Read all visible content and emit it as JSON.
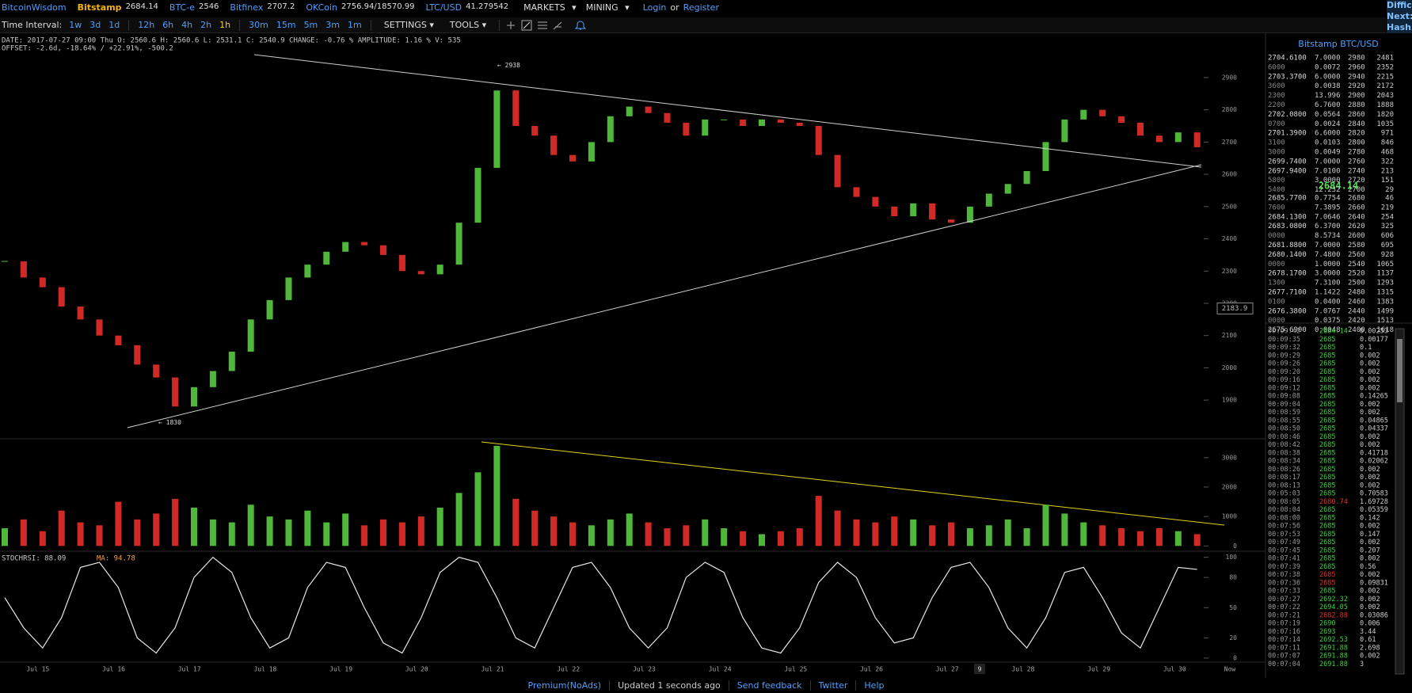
{
  "header": {
    "brand": "BitcoinWisdom",
    "tickers": [
      {
        "name": "Bitstamp",
        "price": "2684.14"
      },
      {
        "name": "BTC-e",
        "price": "2546"
      },
      {
        "name": "Bitfinex",
        "price": "2707.2"
      },
      {
        "name": "OKCoin",
        "price": "2756.94/18570.99"
      },
      {
        "name": "LTC/USD",
        "price": "41.279542"
      }
    ],
    "menus": [
      "MARKETS",
      "MINING"
    ],
    "login": "Login",
    "or": "or",
    "register": "Register"
  },
  "side_info": [
    "Diffic",
    "Next:",
    "Hash"
  ],
  "toolbar": {
    "label": "Time Interval:",
    "intervals": [
      "1w",
      "3d",
      "1d",
      "12h",
      "6h",
      "4h",
      "2h",
      "1h",
      "30m",
      "15m",
      "5m",
      "3m",
      "1m"
    ],
    "active_interval": "1h",
    "settings": "SETTINGS",
    "tools": "TOOLS"
  },
  "chart_data": [
    {
      "type": "candlestick",
      "info": "DATE: 2017-07-27 09:00 Thu   O: 2560.6   H: 2560.6   L: 2531.1   C: 2540.9   CHANGE: -0.76 %   AMPLITUDE: 1.16 %   V: 535",
      "offset": "OFFSET: -2.6d, -18.64% / +22.91%, -500.2",
      "values": [
        2330,
        2280,
        2250,
        2190,
        2150,
        2100,
        2070,
        2010,
        1970,
        1880,
        1940,
        1990,
        2050,
        2150,
        2210,
        2280,
        2320,
        2360,
        2390,
        2380,
        2350,
        2300,
        2290,
        2320,
        2450,
        2620,
        2860,
        2750,
        2720,
        2660,
        2640,
        2700,
        2780,
        2810,
        2790,
        2760,
        2720,
        2770,
        2770,
        2750,
        2770,
        2760,
        2750,
        2660,
        2560,
        2530,
        2500,
        2470,
        2510,
        2460,
        2450,
        2500,
        2540,
        2570,
        2610,
        2700,
        2770,
        2800,
        2780,
        2760,
        2720,
        2700,
        2730,
        2684
      ],
      "colors": {
        "up": "#4fb83a",
        "down": "#d12a26"
      },
      "ylim": [
        1780,
        3030
      ],
      "yticks": [
        1900,
        2000,
        2100,
        2200,
        2300,
        2400,
        2500,
        2600,
        2700,
        2800,
        2900
      ],
      "high_label": {
        "value": 2938,
        "label": "← 2938"
      },
      "low_label": {
        "value": 1830,
        "label": "← 1830"
      },
      "price_marker": {
        "value": 2183.9,
        "label": "2183.9"
      },
      "x_labels": [
        "Jul 15",
        "Jul 16",
        "Jul 17",
        "Jul 18",
        "Jul 19",
        "Jul 20",
        "Jul 21",
        "Jul 22",
        "Jul 23",
        "Jul 24",
        "Jul 25",
        "Jul 26",
        "Jul 27",
        "Jul 28",
        "Jul 29",
        "Jul 30"
      ],
      "now_label": "Now",
      "crosshair_label": "9"
    },
    {
      "type": "bar",
      "values": [
        600,
        900,
        500,
        1200,
        800,
        700,
        1500,
        900,
        1100,
        1600,
        1300,
        900,
        800,
        1400,
        1000,
        900,
        1200,
        800,
        1100,
        700,
        900,
        800,
        1000,
        1300,
        1800,
        2500,
        3400,
        1600,
        1200,
        1000,
        800,
        700,
        900,
        1100,
        800,
        600,
        700,
        900,
        600,
        500,
        400,
        500,
        600,
        1700,
        1200,
        900,
        800,
        1000,
        900,
        700,
        800,
        600,
        700,
        900,
        600,
        1400,
        1100,
        800,
        700,
        600,
        500,
        600,
        500,
        400
      ],
      "ylim": [
        -180,
        3640
      ],
      "yticks": [
        0,
        1000,
        2000,
        3000
      ]
    },
    {
      "type": "line",
      "title": "STOCHRSI: 88.09",
      "ma_label": "MA: 94.78",
      "color": "#e8e8e8",
      "values": [
        60,
        30,
        10,
        40,
        90,
        95,
        70,
        20,
        5,
        30,
        80,
        100,
        85,
        40,
        10,
        20,
        70,
        95,
        90,
        50,
        15,
        5,
        40,
        85,
        100,
        95,
        60,
        20,
        10,
        50,
        90,
        95,
        70,
        30,
        10,
        30,
        80,
        95,
        85,
        40,
        10,
        5,
        30,
        75,
        95,
        80,
        40,
        15,
        20,
        60,
        90,
        95,
        70,
        30,
        10,
        40,
        85,
        90,
        60,
        25,
        10,
        50,
        90,
        88
      ],
      "ylim": [
        -4,
        106
      ],
      "yticks": [
        0,
        20,
        50,
        80,
        100
      ]
    }
  ],
  "order_book": {
    "title": "Bitstamp BTC/USD",
    "asks": [
      [
        "2704.6100",
        "7.0000",
        "2980",
        "2481"
      ],
      [
        "6000",
        "0.0072",
        "2960",
        "2352"
      ],
      [
        "2703.3700",
        "6.0000",
        "2940",
        "2215"
      ],
      [
        "3600",
        "0.0038",
        "2920",
        "2172"
      ],
      [
        "2300",
        "13.996",
        "2900",
        "2043"
      ],
      [
        "2200",
        "6.7600",
        "2880",
        "1888"
      ],
      [
        "2702.0800",
        "0.0564",
        "2860",
        "1820"
      ],
      [
        "0700",
        "0.0024",
        "2840",
        "1035"
      ],
      [
        "2701.3900",
        "6.6000",
        "2820",
        "971"
      ],
      [
        "3100",
        "0.0103",
        "2800",
        "846"
      ],
      [
        "3000",
        "0.0049",
        "2780",
        "468"
      ],
      [
        "2699.7400",
        "7.0000",
        "2760",
        "322"
      ],
      [
        "2697.9400",
        "7.0100",
        "2740",
        "213"
      ],
      [
        "5800",
        "3.0000",
        "2720",
        "151"
      ],
      [
        "5400",
        "12.232",
        "2700",
        "29"
      ]
    ],
    "last": "2684.14",
    "bids": [
      [
        "2685.7700",
        "0.7754",
        "2680",
        "46"
      ],
      [
        "7600",
        "7.3895",
        "2660",
        "219"
      ],
      [
        "2684.1300",
        "7.0646",
        "2640",
        "254"
      ],
      [
        "2683.0800",
        "6.3700",
        "2620",
        "325"
      ],
      [
        "0000",
        "8.5734",
        "2600",
        "606"
      ],
      [
        "2681.8800",
        "7.0000",
        "2580",
        "695"
      ],
      [
        "2680.1400",
        "7.4800",
        "2560",
        "928"
      ],
      [
        "0000",
        "1.0000",
        "2540",
        "1065"
      ],
      [
        "2678.1700",
        "3.0000",
        "2520",
        "1137"
      ],
      [
        "1300",
        "7.3100",
        "2500",
        "1293"
      ],
      [
        "2677.7100",
        "1.1422",
        "2480",
        "1315"
      ],
      [
        "0100",
        "0.0400",
        "2460",
        "1383"
      ],
      [
        "2676.3800",
        "7.0767",
        "2440",
        "1499"
      ],
      [
        "0000",
        "0.0375",
        "2420",
        "1513"
      ],
      [
        "2675.6900",
        "0.0048",
        "2400",
        "1618"
      ]
    ]
  },
  "trades": [
    {
      "time": "00:09:42",
      "price": "2684.14",
      "amount": "0.00253",
      "side": "buy"
    },
    {
      "time": "00:09:35",
      "price": "2685",
      "amount": "0.00177",
      "side": "buy"
    },
    {
      "time": "00:09:32",
      "price": "2685",
      "amount": "0.1",
      "side": "buy"
    },
    {
      "time": "00:09:29",
      "price": "2685",
      "amount": "0.002",
      "side": "buy"
    },
    {
      "time": "00:09:26",
      "price": "2685",
      "amount": "0.002",
      "side": "buy"
    },
    {
      "time": "00:09:20",
      "price": "2685",
      "amount": "0.002",
      "side": "buy"
    },
    {
      "time": "00:09:16",
      "price": "2685",
      "amount": "0.002",
      "side": "buy"
    },
    {
      "time": "00:09:12",
      "price": "2685",
      "amount": "0.002",
      "side": "buy"
    },
    {
      "time": "00:09:08",
      "price": "2685",
      "amount": "0.14265",
      "side": "buy"
    },
    {
      "time": "00:09:04",
      "price": "2685",
      "amount": "0.002",
      "side": "buy"
    },
    {
      "time": "00:08:59",
      "price": "2685",
      "amount": "0.002",
      "side": "buy"
    },
    {
      "time": "00:08:55",
      "price": "2685",
      "amount": "0.04865",
      "side": "buy"
    },
    {
      "time": "00:08:50",
      "price": "2685",
      "amount": "0.04337",
      "side": "buy"
    },
    {
      "time": "00:08:46",
      "price": "2685",
      "amount": "0.002",
      "side": "buy"
    },
    {
      "time": "00:08:42",
      "price": "2685",
      "amount": "0.002",
      "side": "buy"
    },
    {
      "time": "00:08:38",
      "price": "2685",
      "amount": "0.41718",
      "side": "buy"
    },
    {
      "time": "00:08:34",
      "price": "2685",
      "amount": "0.02062",
      "side": "buy"
    },
    {
      "time": "00:08:26",
      "price": "2685",
      "amount": "0.002",
      "side": "buy"
    },
    {
      "time": "00:08:17",
      "price": "2685",
      "amount": "0.002",
      "side": "buy"
    },
    {
      "time": "00:08:13",
      "price": "2685",
      "amount": "0.002",
      "side": "buy"
    },
    {
      "time": "00:05:03",
      "price": "2685",
      "amount": "0.70583",
      "side": "buy"
    },
    {
      "time": "00:08:05",
      "price": "2680.74",
      "amount": "1.69728",
      "side": "sell"
    },
    {
      "time": "00:08:04",
      "price": "2685",
      "amount": "0.05359",
      "side": "buy"
    },
    {
      "time": "00:08:00",
      "price": "2685",
      "amount": "0.142",
      "side": "buy"
    },
    {
      "time": "00:07:56",
      "price": "2685",
      "amount": "0.002",
      "side": "buy"
    },
    {
      "time": "00:07:53",
      "price": "2685",
      "amount": "0.147",
      "side": "buy"
    },
    {
      "time": "00:07:49",
      "price": "2685",
      "amount": "0.002",
      "side": "buy"
    },
    {
      "time": "00:07:45",
      "price": "2685",
      "amount": "0.207",
      "side": "buy"
    },
    {
      "time": "00:07:41",
      "price": "2685",
      "amount": "0.002",
      "side": "buy"
    },
    {
      "time": "00:07:39",
      "price": "2685",
      "amount": "0.56",
      "side": "buy"
    },
    {
      "time": "00:07:38",
      "price": "2685",
      "amount": "0.002",
      "side": "sell"
    },
    {
      "time": "00:07:36",
      "price": "2685",
      "amount": "0.09831",
      "side": "sell"
    },
    {
      "time": "00:07:33",
      "price": "2685",
      "amount": "0.002",
      "side": "buy"
    },
    {
      "time": "00:07:27",
      "price": "2692.32",
      "amount": "0.002",
      "side": "buy"
    },
    {
      "time": "00:07:22",
      "price": "2694.05",
      "amount": "0.002",
      "side": "buy"
    },
    {
      "time": "00:07:21",
      "price": "2682.88",
      "amount": "0.03086",
      "side": "sell"
    },
    {
      "time": "00:07:19",
      "price": "2690",
      "amount": "0.006",
      "side": "buy"
    },
    {
      "time": "00:07:16",
      "price": "2693",
      "amount": "3.44",
      "side": "buy"
    },
    {
      "time": "00:07:14",
      "price": "2692.53",
      "amount": "0.61",
      "side": "buy"
    },
    {
      "time": "00:07:11",
      "price": "2691.88",
      "amount": "2.698",
      "side": "buy"
    },
    {
      "time": "00:07:07",
      "price": "2691.88",
      "amount": "0.002",
      "side": "buy"
    },
    {
      "time": "00:07:04",
      "price": "2691.88",
      "amount": "3",
      "side": "buy"
    }
  ],
  "footer": [
    "Premium(NoAds)",
    "Updated 1 seconds ago",
    "Send feedback",
    "Twitter",
    "Help"
  ]
}
